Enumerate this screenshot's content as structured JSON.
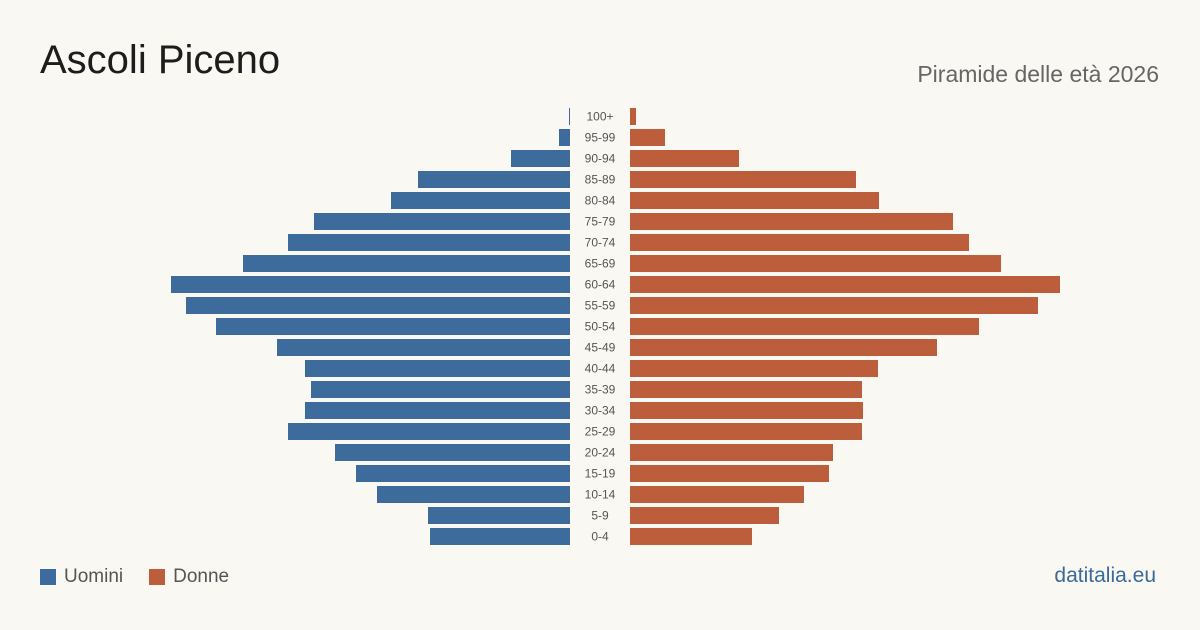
{
  "title": "Ascoli Piceno",
  "subtitle": "Piramide delle età 2026",
  "source": "datitalia.eu",
  "colors": {
    "men": "#3d6b9b",
    "women": "#bc5e3c",
    "background": "#faf8f3",
    "tick": "#555555"
  },
  "legend": [
    {
      "label": "Uomini",
      "color": "#3d6b9b"
    },
    {
      "label": "Donne",
      "color": "#bc5e3c"
    }
  ],
  "chart_data": {
    "type": "bar",
    "orientation": "horizontal",
    "categories": [
      "100+",
      "95-99",
      "90-94",
      "85-89",
      "80-84",
      "75-79",
      "70-74",
      "65-69",
      "60-64",
      "55-59",
      "50-54",
      "45-49",
      "40-44",
      "35-39",
      "30-34",
      "25-29",
      "20-24",
      "15-19",
      "10-14",
      "5-9",
      "0-4"
    ],
    "series": [
      {
        "name": "Uomini",
        "values": [
          1,
          11,
          59,
          152,
          179,
          256,
          282,
          327,
          399,
          384,
          354,
          293,
          265,
          259,
          265,
          282,
          235,
          214,
          193,
          142,
          140
        ]
      },
      {
        "name": "Donne",
        "values": [
          6,
          35,
          109,
          226,
          249,
          323,
          339,
          371,
          430,
          408,
          349,
          307,
          248,
          232,
          233,
          232,
          203,
          199,
          174,
          149,
          122
        ]
      }
    ],
    "legend_position": "bottom-left",
    "grid": false
  }
}
